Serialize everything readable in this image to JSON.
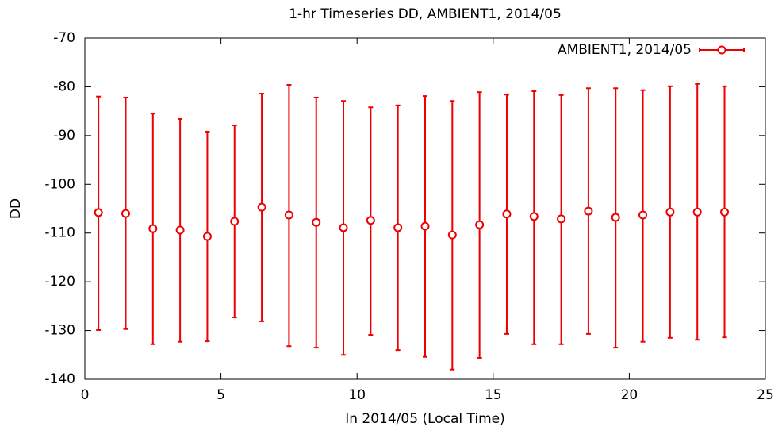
{
  "chart_data": {
    "type": "errorbar",
    "title": "1-hr Timeseries DD, AMBIENT1, 2014/05",
    "x_label": "In 2014/05 (Local Time)",
    "y_label": "DD",
    "xlim": [
      0,
      25
    ],
    "xticks": [
      0,
      5,
      10,
      15,
      20,
      25
    ],
    "ylim": [
      -140,
      -70
    ],
    "yticks": [
      -140,
      -130,
      -120,
      -110,
      -100,
      -90,
      -80,
      -70
    ],
    "grid": false,
    "legend": "top-right",
    "x": [
      0.5,
      1.5,
      2.5,
      3.5,
      4.5,
      5.5,
      6.5,
      7.5,
      8.5,
      9.5,
      10.5,
      11.5,
      12.5,
      13.5,
      14.5,
      15.5,
      16.5,
      17.5,
      18.5,
      19.5,
      20.5,
      21.5,
      22.5,
      23.5
    ],
    "series": [
      {
        "name": "AMBIENT1, 2014/05",
        "color": "#ee0000",
        "values": [
          -105.8,
          -106.0,
          -109.1,
          -109.4,
          -110.7,
          -107.6,
          -104.7,
          -106.3,
          -107.8,
          -108.9,
          -107.4,
          -108.9,
          -108.6,
          -110.4,
          -108.3,
          -106.1,
          -106.6,
          -107.1,
          -105.5,
          -106.8,
          -106.3,
          -105.7,
          -105.7,
          -105.7
        ],
        "low": [
          -129.9,
          -129.7,
          -132.8,
          -132.3,
          -132.2,
          -127.3,
          -128.1,
          -133.2,
          -133.5,
          -135.0,
          -130.9,
          -134.0,
          -135.4,
          -138.0,
          -135.6,
          -130.7,
          -132.8,
          -132.8,
          -130.7,
          -133.5,
          -132.3,
          -131.5,
          -131.9,
          -131.4
        ],
        "high": [
          -82.0,
          -82.2,
          -85.5,
          -86.6,
          -89.2,
          -87.9,
          -81.4,
          -79.6,
          -82.2,
          -82.9,
          -84.2,
          -83.8,
          -81.9,
          -82.9,
          -81.1,
          -81.6,
          -80.9,
          -81.7,
          -80.3,
          -80.3,
          -80.7,
          -79.9,
          -79.4,
          -79.9
        ]
      }
    ]
  }
}
